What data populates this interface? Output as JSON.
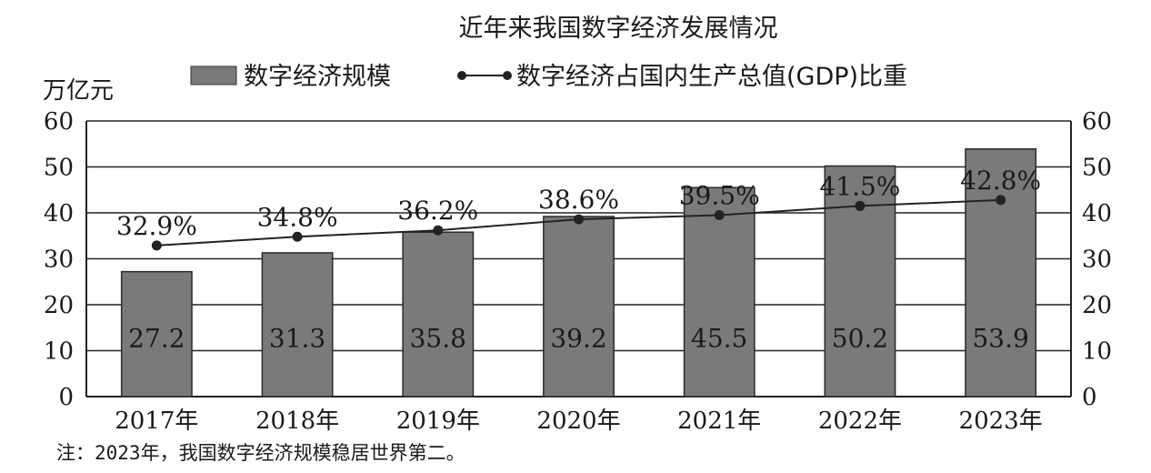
{
  "chart_data": {
    "type": "bar",
    "title": "近年来我国数字经济发展情况",
    "unit_label": "万亿元",
    "categories": [
      "2017年",
      "2018年",
      "2019年",
      "2020年",
      "2021年",
      "2022年",
      "2023年"
    ],
    "series": [
      {
        "name": "数字经济规模",
        "type": "bar",
        "values": [
          27.2,
          31.3,
          35.8,
          39.2,
          45.5,
          50.2,
          53.9
        ],
        "labels": [
          "27.2",
          "31.3",
          "35.8",
          "39.2",
          "45.5",
          "50.2",
          "53.9"
        ]
      },
      {
        "name": "数字经济占国内生产总值(GDP)比重",
        "type": "line",
        "values": [
          32.9,
          34.8,
          36.2,
          38.6,
          39.5,
          41.5,
          42.8
        ],
        "labels": [
          "32.9%",
          "34.8%",
          "36.2%",
          "38.6%",
          "39.5%",
          "41.5%",
          "42.8%"
        ]
      }
    ],
    "ylim": [
      0,
      60
    ],
    "y_ticks": [
      "0",
      "10",
      "20",
      "30",
      "40",
      "50",
      "60"
    ],
    "y2_ticks": [
      "0",
      "10",
      "20",
      "30",
      "40",
      "50",
      "60"
    ],
    "grid": true,
    "legend_position": "top-center",
    "bar_color": "#7a7a7a",
    "line_color": "#222222"
  },
  "note": "注：2023年，我国数字经济规模稳居世界第二。"
}
